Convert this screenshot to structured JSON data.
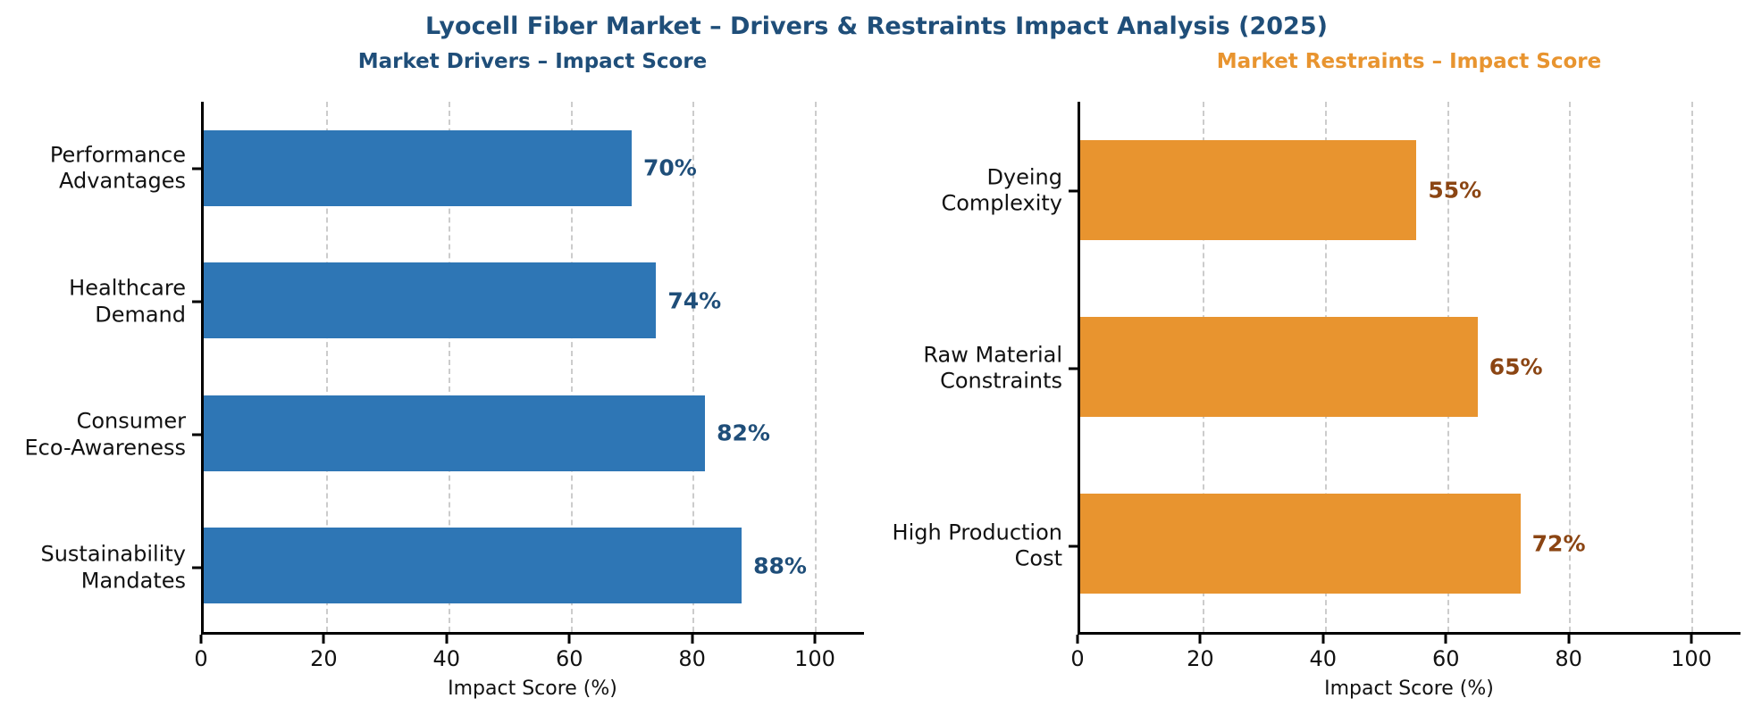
{
  "page": {
    "title": "Lyocell Fiber Market – Drivers & Restraints Impact Analysis (2025)",
    "title_color": "#1f4e79",
    "background_color": "#ffffff"
  },
  "chart_data": [
    {
      "type": "bar",
      "orientation": "horizontal",
      "title": "Market Drivers – Impact Score",
      "title_color": "#1f4e79",
      "bar_color": "#2e76b5",
      "value_label_color": "#1f4e79",
      "categories": [
        [
          "Performance",
          "Advantages"
        ],
        [
          "Healthcare",
          "Demand"
        ],
        [
          "Consumer",
          "Eco-Awareness"
        ],
        [
          "Sustainability",
          "Mandates"
        ]
      ],
      "values": [
        70,
        74,
        82,
        88
      ],
      "value_labels": [
        "70%",
        "74%",
        "82%",
        "88%"
      ],
      "value_suffix": "%",
      "xlabel": "Impact Score (%)",
      "xticks": [
        0,
        20,
        40,
        60,
        80,
        100
      ],
      "xlim": [
        0,
        108
      ],
      "grid": true,
      "gridline_color": "#cccccc",
      "bar_height_frac": 0.57
    },
    {
      "type": "bar",
      "orientation": "horizontal",
      "title": "Market Restraints – Impact Score",
      "title_color": "#e8942f",
      "bar_color": "#e8942f",
      "value_label_color": "#8b4513",
      "categories": [
        [
          "Dyeing",
          "Complexity"
        ],
        [
          "Raw Material",
          "Constraints"
        ],
        [
          "High Production",
          "Cost"
        ]
      ],
      "values": [
        55,
        65,
        72
      ],
      "value_labels": [
        "55%",
        "65%",
        "72%"
      ],
      "value_suffix": "%",
      "xlabel": "Impact Score (%)",
      "xticks": [
        0,
        20,
        40,
        60,
        80,
        100
      ],
      "xlim": [
        0,
        108
      ],
      "grid": true,
      "gridline_color": "#cccccc",
      "bar_height_frac": 0.57
    }
  ]
}
